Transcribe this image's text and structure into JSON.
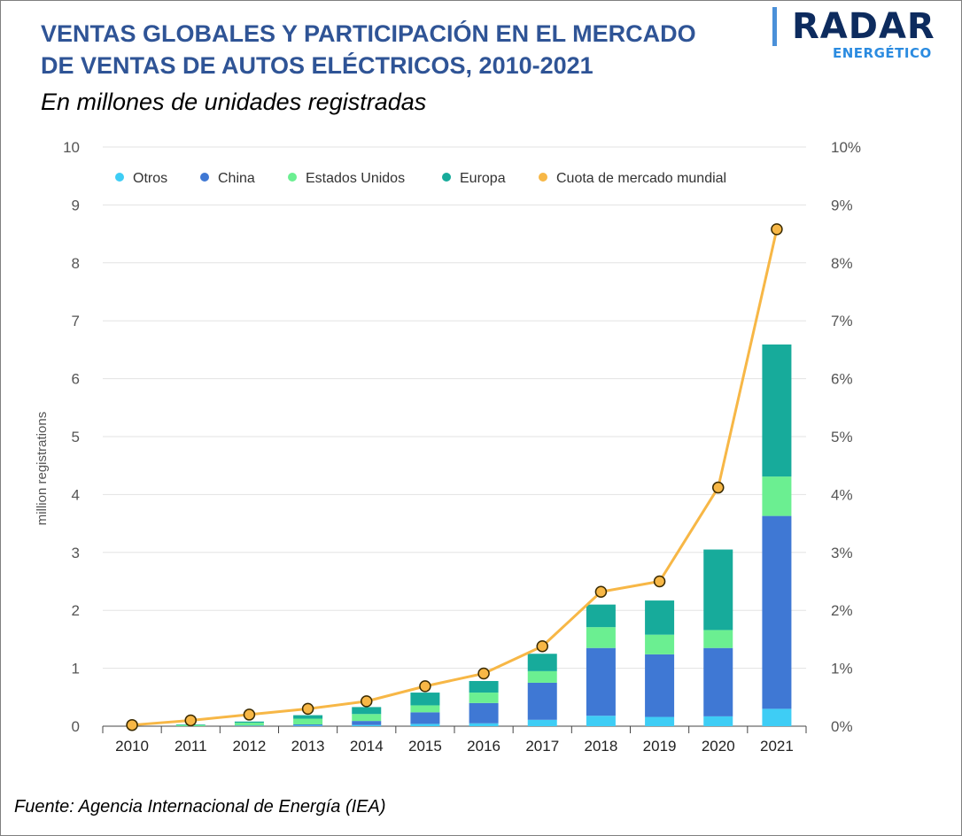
{
  "header": {
    "title_line1": "VENTAS GLOBALES Y PARTICIPACIÓN EN EL MERCADO",
    "title_line2": "DE VENTAS DE AUTOS ELÉCTRICOS, 2010-2021",
    "subtitle": "En millones de unidades registradas"
  },
  "logo": {
    "main": "RADAR",
    "sub": "ENERGÉTICO"
  },
  "footer": {
    "source": "Fuente: Agencia Internacional de Energía (IEA)"
  },
  "chart_data": {
    "type": "bar",
    "stacked": true,
    "categories": [
      "2010",
      "2011",
      "2012",
      "2013",
      "2014",
      "2015",
      "2016",
      "2017",
      "2018",
      "2019",
      "2020",
      "2021"
    ],
    "series": [
      {
        "name": "Otros",
        "color": "#3ecdf5",
        "values": [
          0.0,
          0.0,
          0.0,
          0.01,
          0.02,
          0.04,
          0.05,
          0.11,
          0.18,
          0.16,
          0.17,
          0.3
        ]
      },
      {
        "name": "China",
        "color": "#3f78d4",
        "values": [
          0.0,
          0.0,
          0.01,
          0.02,
          0.07,
          0.2,
          0.35,
          0.64,
          1.17,
          1.08,
          1.18,
          3.33
        ]
      },
      {
        "name": "Estados Unidos",
        "color": "#6bef91",
        "values": [
          0.0,
          0.02,
          0.05,
          0.1,
          0.12,
          0.12,
          0.18,
          0.2,
          0.36,
          0.34,
          0.31,
          0.68
        ]
      },
      {
        "name": "Europa",
        "color": "#17ab9b",
        "values": [
          0.0,
          0.01,
          0.02,
          0.06,
          0.12,
          0.22,
          0.2,
          0.3,
          0.39,
          0.59,
          1.39,
          2.28
        ]
      }
    ],
    "line_series": {
      "name": "Cuota de mercado mundial",
      "color": "#f7b746",
      "axis": "right",
      "values": [
        0.02,
        0.1,
        0.2,
        0.3,
        0.43,
        0.69,
        0.91,
        1.38,
        2.32,
        2.5,
        4.12,
        8.58
      ]
    },
    "ylabel": "million registrations",
    "ylim": [
      0,
      10
    ],
    "yticks": [
      "0",
      "1",
      "2",
      "3",
      "4",
      "5",
      "6",
      "7",
      "8",
      "9",
      "10"
    ],
    "y2lim": [
      0,
      10
    ],
    "y2ticks": [
      "0%",
      "1%",
      "2%",
      "3%",
      "4%",
      "5%",
      "6%",
      "7%",
      "8%",
      "9%",
      "10%"
    ],
    "grid": true,
    "legend_position": "top-left"
  }
}
